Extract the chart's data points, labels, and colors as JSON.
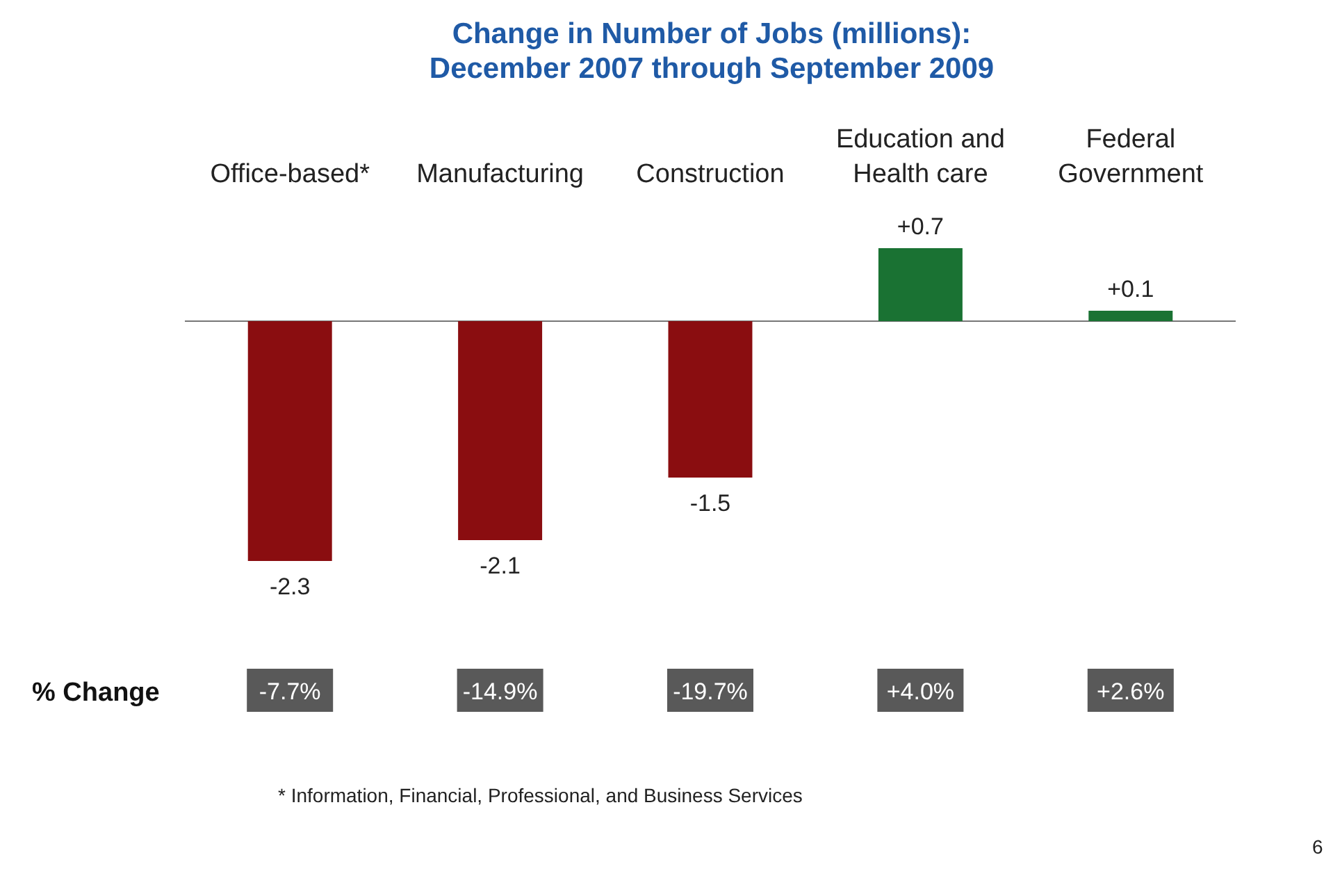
{
  "chart_data": {
    "type": "bar",
    "title": "Change in Number of Jobs (millions): December 2007 through September 2009",
    "categories": [
      "Office-based*",
      "Manufacturing",
      "Construction",
      "Education and Health care",
      "Federal Government"
    ],
    "values": [
      -2.3,
      -2.1,
      -1.5,
      0.7,
      0.1
    ],
    "value_labels": [
      "-2.3",
      "-2.1",
      "-1.5",
      "+0.7",
      "+0.1"
    ],
    "colors": [
      "#8a0d10",
      "#8a0d10",
      "#8a0d10",
      "#1a7233",
      "#1a7233"
    ],
    "annotations": [
      "% Change",
      "-7.7%",
      "-14.9%",
      "-19.7%",
      "+4.0%",
      "+2.6%",
      "* Information, Financial, Professional, and Business Services",
      "6"
    ]
  }
}
